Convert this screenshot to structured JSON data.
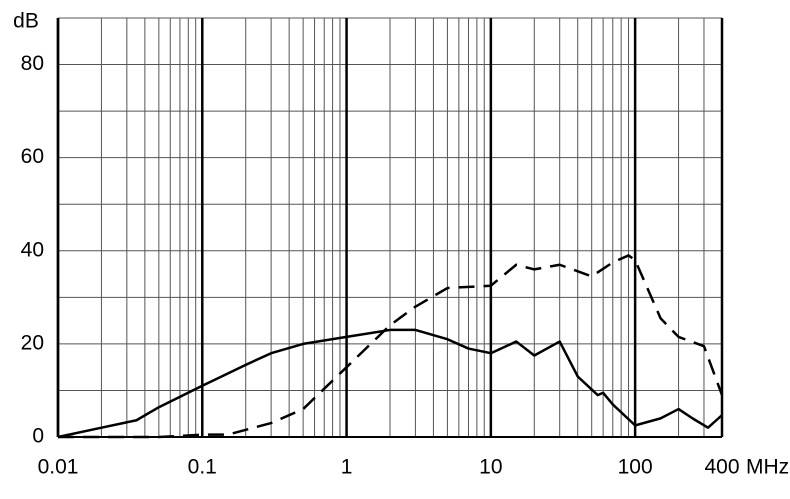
{
  "chart_data": {
    "type": "line",
    "y_label": "dB",
    "x_label": "MHz",
    "xscale": "log",
    "xlim": [
      0.01,
      400
    ],
    "ylim": [
      0,
      90
    ],
    "xticks": [
      0.01,
      0.1,
      1,
      10,
      100,
      400
    ],
    "yticks": [
      0,
      20,
      40,
      60,
      80
    ],
    "x_minor_grid": [
      0.02,
      0.03,
      0.04,
      0.05,
      0.06,
      0.07,
      0.08,
      0.09,
      0.2,
      0.3,
      0.4,
      0.5,
      0.6,
      0.7,
      0.8,
      0.9,
      2,
      3,
      4,
      5,
      6,
      7,
      8,
      9,
      20,
      30,
      40,
      50,
      60,
      70,
      80,
      90,
      200,
      300
    ],
    "y_minor_grid": [
      10,
      30,
      50,
      70,
      90
    ],
    "grid": true,
    "series": [
      {
        "color": "#000000",
        "dash": "solid",
        "x": [
          0.01,
          0.02,
          0.035,
          0.05,
          0.1,
          0.2,
          0.3,
          0.5,
          1,
          2,
          3,
          5,
          7,
          10,
          15,
          20,
          30,
          40,
          55,
          60,
          70,
          100,
          150,
          200,
          250,
          320,
          400
        ],
        "values": [
          0,
          2,
          3.6,
          6.4,
          11,
          15.5,
          18,
          20,
          21.5,
          23,
          23,
          21,
          19,
          18,
          20.5,
          17.5,
          20.5,
          13,
          9,
          9.5,
          7,
          2.5,
          4,
          6,
          4,
          2,
          4.7
        ]
      },
      {
        "color": "#000000",
        "dash": "dashed",
        "x": [
          0.01,
          0.05,
          0.1,
          0.15,
          0.3,
          0.5,
          1,
          2,
          3,
          5,
          10,
          15,
          20,
          30,
          50,
          70,
          90,
          100,
          150,
          200,
          300,
          400
        ],
        "values": [
          0,
          0,
          0.5,
          0.5,
          3,
          6,
          15,
          24,
          28,
          32,
          32.5,
          37,
          36,
          37,
          34.5,
          37.5,
          39,
          38,
          25.5,
          21.5,
          19.5,
          9
        ]
      }
    ]
  }
}
